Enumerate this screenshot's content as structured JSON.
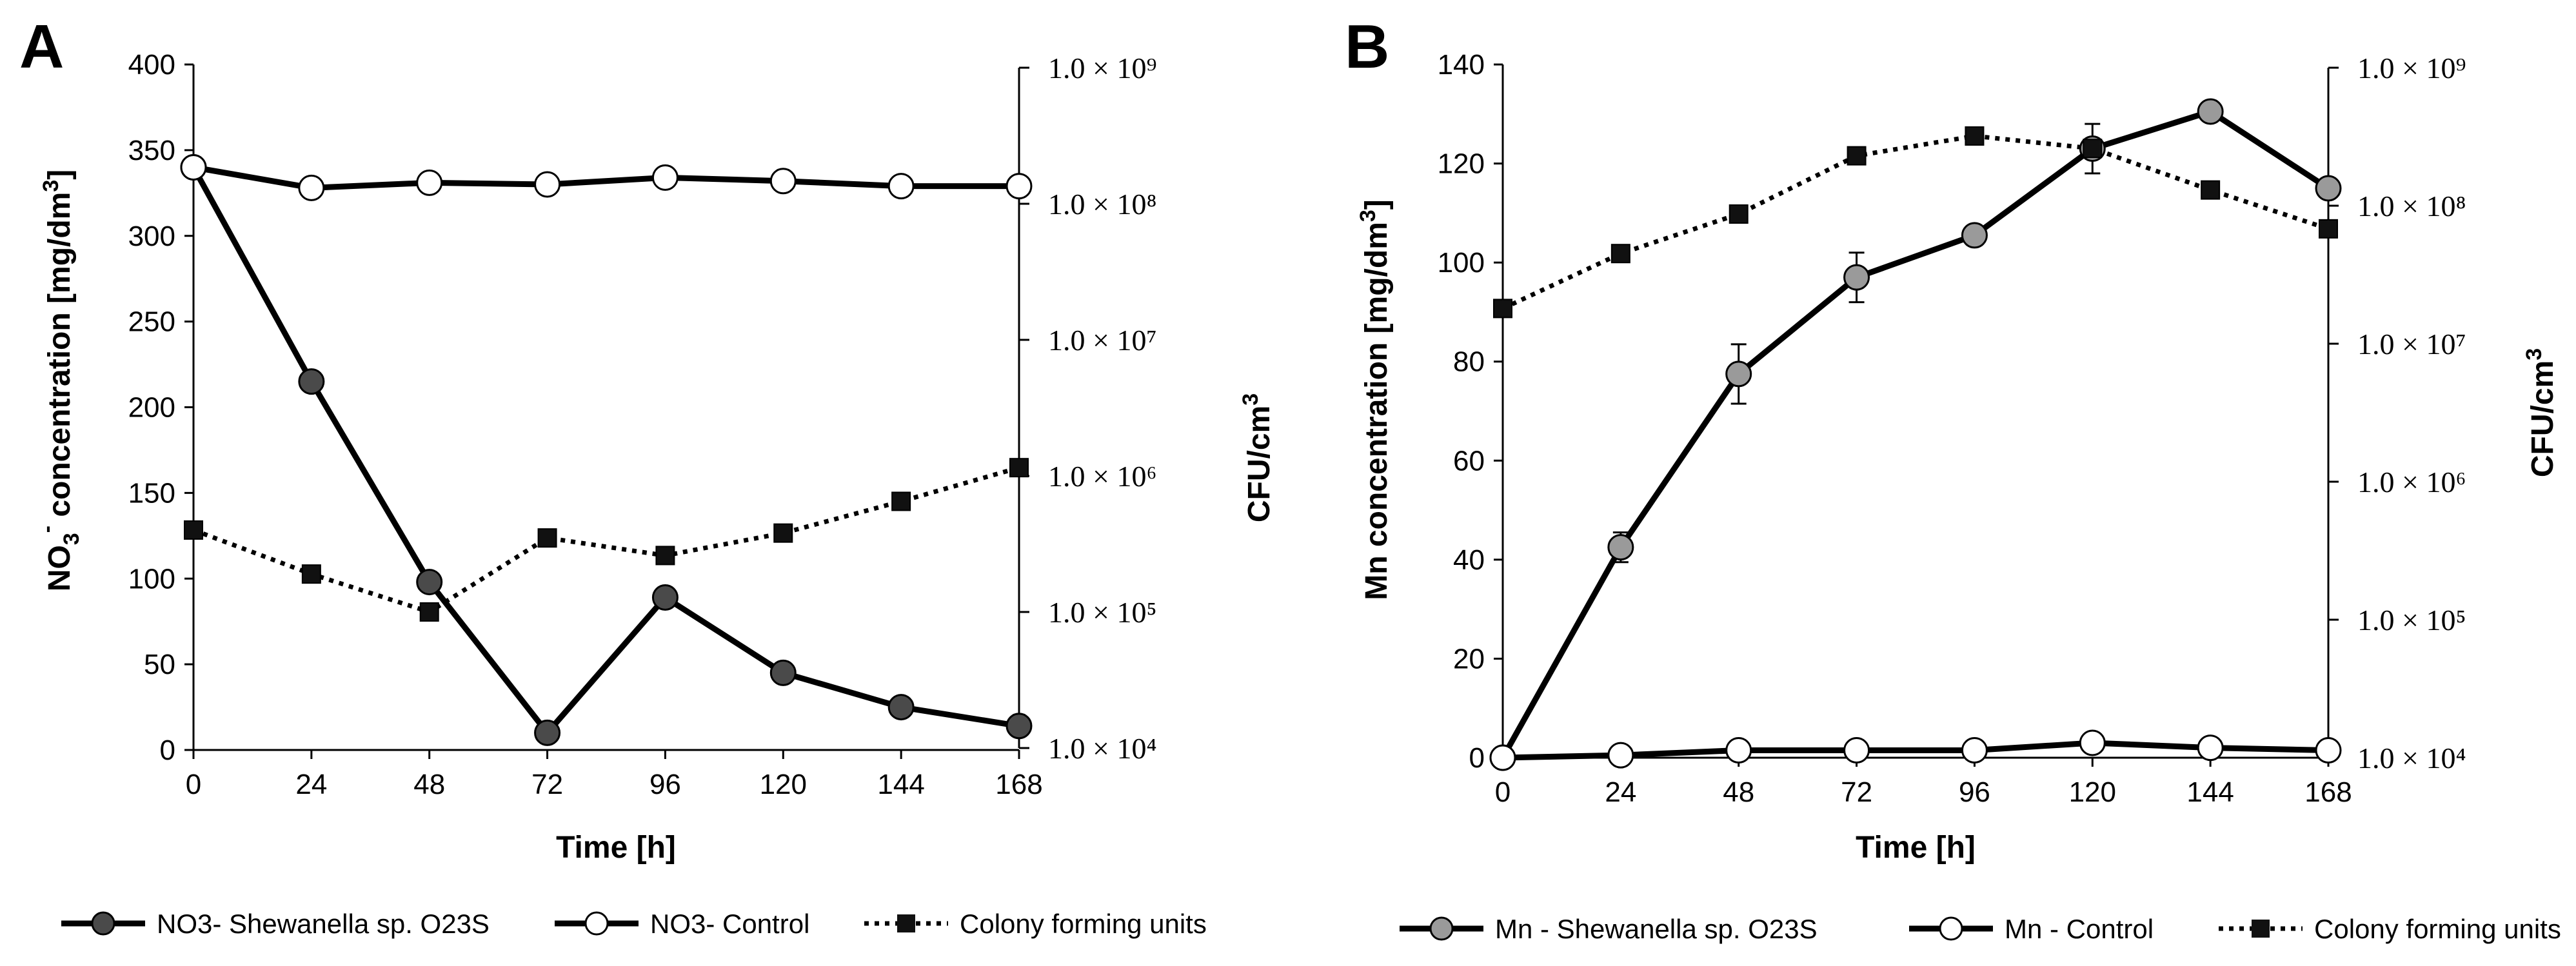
{
  "chart_data": [
    {
      "panel": "A",
      "type": "line",
      "xlabel": "Time [h]",
      "ylabel": "NO3- concentration [mg/dm3]",
      "y2label": "CFU/cm3",
      "x": [
        0,
        24,
        48,
        72,
        96,
        120,
        144,
        168
      ],
      "xlim": [
        0,
        168
      ],
      "ylim": [
        0,
        400
      ],
      "y_ticks": [
        0,
        50,
        100,
        150,
        200,
        250,
        300,
        350,
        400
      ],
      "y2_scale": "log",
      "y2lim": [
        10000,
        1000000000
      ],
      "y2_ticks": [
        "1.0 × 10⁴",
        "1.0 × 10⁵",
        "1.0 × 10⁶",
        "1.0 × 10⁷",
        "1.0 × 10⁸",
        "1.0 × 10⁹"
      ],
      "legend_position": "bottom",
      "series": [
        {
          "name": "NO3- Shewanella sp. O23S",
          "axis": "left",
          "style": "solid",
          "marker": "circle-dark",
          "values": [
            340,
            215,
            98,
            10,
            89,
            45,
            25,
            14
          ]
        },
        {
          "name": "NO3- Control",
          "axis": "left",
          "style": "solid",
          "marker": "circle-open",
          "values": [
            340,
            328,
            331,
            330,
            334,
            332,
            329,
            329
          ]
        },
        {
          "name": "Colony forming units",
          "axis": "right",
          "style": "dotted",
          "marker": "square",
          "values": [
            400000,
            190000,
            100000,
            350000,
            260000,
            380000,
            650000,
            1150000
          ]
        }
      ]
    },
    {
      "panel": "B",
      "type": "line",
      "xlabel": "Time [h]",
      "ylabel": "Mn concentration [mg/dm3]",
      "y2label": "CFU/cm3",
      "x": [
        0,
        24,
        48,
        72,
        96,
        120,
        144,
        168
      ],
      "xlim": [
        0,
        168
      ],
      "ylim": [
        0,
        140
      ],
      "y_ticks": [
        0,
        20,
        40,
        60,
        80,
        100,
        120,
        140
      ],
      "y2_scale": "log",
      "y2lim": [
        10000,
        1000000000
      ],
      "y2_ticks": [
        "1.0 × 10⁴",
        "1.0 × 10⁵",
        "1.0 × 10⁶",
        "1.0 × 10⁷",
        "1.0 × 10⁸",
        "1.0 × 10⁹"
      ],
      "legend_position": "bottom",
      "series": [
        {
          "name": "Mn - Shewanella sp. O23S",
          "axis": "left",
          "style": "solid",
          "marker": "circle-gray",
          "values": [
            0,
            42.5,
            77.5,
            97,
            105.5,
            123,
            130.5,
            115
          ],
          "errors": [
            0,
            3,
            6,
            5,
            2,
            5,
            0,
            0
          ]
        },
        {
          "name": "Mn - Control",
          "axis": "left",
          "style": "solid",
          "marker": "circle-open",
          "values": [
            0,
            0.5,
            1.5,
            1.5,
            1.5,
            3,
            2,
            1.5
          ]
        },
        {
          "name": "Colony forming units",
          "axis": "right",
          "style": "dotted",
          "marker": "square",
          "values": [
            18000000,
            45000000,
            87000000,
            230000000,
            320000000,
            260000000,
            130000000,
            68000000
          ]
        }
      ]
    }
  ]
}
